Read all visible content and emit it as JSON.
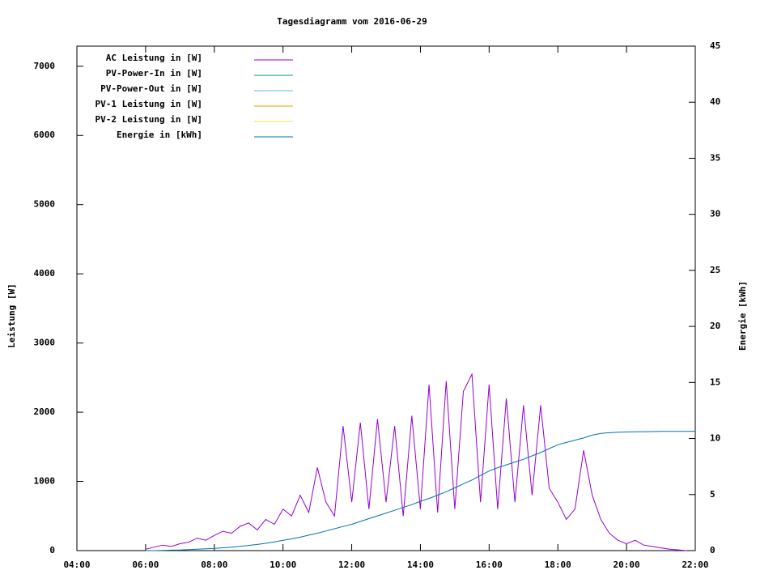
{
  "chart_data": {
    "type": "line",
    "title": "Tagesdiagramm vom 2016-06-29",
    "y_label": "Leistung [W]",
    "y2_label": "Energie [kWh]",
    "legend": "top-left",
    "x": [
      "06:00",
      "06:15",
      "06:30",
      "06:45",
      "07:00",
      "07:15",
      "07:30",
      "07:45",
      "08:00",
      "08:15",
      "08:30",
      "08:45",
      "09:00",
      "09:15",
      "09:30",
      "09:45",
      "10:00",
      "10:15",
      "10:30",
      "10:45",
      "11:00",
      "11:15",
      "11:30",
      "11:45",
      "12:00",
      "12:15",
      "12:30",
      "12:45",
      "13:00",
      "13:15",
      "13:30",
      "13:45",
      "14:00",
      "14:15",
      "14:30",
      "14:45",
      "15:00",
      "15:15",
      "15:30",
      "15:45",
      "16:00",
      "16:15",
      "16:30",
      "16:45",
      "17:00",
      "17:15",
      "17:30",
      "17:45",
      "18:00",
      "18:15",
      "18:30",
      "18:45",
      "19:00",
      "19:15",
      "19:30",
      "19:45",
      "20:00",
      "20:15",
      "20:30",
      "20:45",
      "21:00",
      "21:15",
      "21:30",
      "21:45",
      "22:00"
    ],
    "xlim": [
      "04:00",
      "22:00"
    ],
    "xticks": [
      "04:00",
      "06:00",
      "08:00",
      "10:00",
      "12:00",
      "14:00",
      "16:00",
      "18:00",
      "20:00",
      "22:00"
    ],
    "ylim": [
      0,
      7290
    ],
    "yticks": [
      0,
      1000,
      2000,
      3000,
      4000,
      5000,
      6000,
      7000
    ],
    "y2lim": [
      0,
      45
    ],
    "y2ticks": [
      0,
      5,
      10,
      15,
      20,
      25,
      30,
      35,
      40,
      45
    ],
    "series": [
      {
        "name": "AC Leistung in [W]",
        "color": "#9400d3",
        "values": [
          20,
          50,
          80,
          60,
          100,
          120,
          180,
          150,
          220,
          280,
          250,
          350,
          400,
          300,
          450,
          380,
          600,
          500,
          800,
          550,
          1200,
          700,
          500,
          1800,
          700,
          1850,
          600,
          1900,
          700,
          1800,
          500,
          1950,
          600,
          2400,
          550,
          2450,
          600,
          2300,
          2550,
          700,
          2400,
          600,
          2200,
          700,
          2100,
          800,
          2100,
          900,
          700,
          450,
          600,
          1450,
          800,
          450,
          250,
          150,
          100,
          150,
          80,
          60,
          40,
          20,
          10,
          0,
          null
        ]
      },
      {
        "name": "PV-Power-In in [W]",
        "color": "#009e73",
        "values": [
          null,
          null,
          null,
          null,
          null,
          null,
          null,
          null,
          null,
          null,
          null,
          null,
          null,
          null,
          null,
          null,
          null,
          null,
          null,
          null,
          null,
          null,
          null,
          null,
          null,
          null,
          null,
          null,
          null,
          null,
          null,
          null,
          null,
          null,
          null,
          null,
          null,
          null,
          null,
          null,
          null,
          null,
          null,
          null,
          null,
          null,
          null,
          null,
          null,
          null,
          null,
          null,
          null,
          null,
          null,
          null,
          null,
          null,
          null,
          null,
          null,
          null,
          null,
          null,
          null
        ]
      },
      {
        "name": "PV-Power-Out in [W]",
        "color": "#56b4e9",
        "values": [
          null,
          null,
          null,
          null,
          null,
          null,
          null,
          null,
          null,
          null,
          null,
          null,
          null,
          null,
          null,
          null,
          null,
          null,
          null,
          null,
          null,
          null,
          null,
          null,
          null,
          null,
          null,
          null,
          null,
          null,
          null,
          null,
          null,
          null,
          null,
          null,
          null,
          null,
          null,
          null,
          null,
          null,
          null,
          null,
          null,
          null,
          null,
          null,
          null,
          null,
          null,
          null,
          null,
          null,
          null,
          null,
          null,
          null,
          null,
          null,
          null,
          null,
          null,
          null,
          null
        ]
      },
      {
        "name": "PV-1 Leistung in [W]",
        "color": "#e69f00",
        "values": [
          null,
          null,
          null,
          null,
          null,
          null,
          null,
          null,
          null,
          null,
          null,
          null,
          null,
          null,
          null,
          null,
          null,
          null,
          null,
          null,
          null,
          null,
          null,
          null,
          null,
          null,
          null,
          null,
          null,
          null,
          null,
          null,
          null,
          null,
          null,
          null,
          null,
          null,
          null,
          null,
          null,
          null,
          null,
          null,
          null,
          null,
          null,
          null,
          null,
          null,
          null,
          null,
          null,
          null,
          null,
          null,
          null,
          null,
          null,
          null,
          null,
          null,
          null,
          null,
          null
        ]
      },
      {
        "name": "PV-2 Leistung in [W]",
        "color": "#f0e442",
        "values": [
          null,
          null,
          null,
          null,
          null,
          null,
          null,
          null,
          null,
          null,
          null,
          null,
          null,
          null,
          null,
          null,
          null,
          null,
          null,
          null,
          null,
          null,
          null,
          null,
          null,
          null,
          null,
          null,
          null,
          null,
          null,
          null,
          null,
          null,
          null,
          null,
          null,
          null,
          null,
          null,
          null,
          null,
          null,
          null,
          null,
          null,
          null,
          null,
          null,
          null,
          null,
          null,
          null,
          null,
          null,
          null,
          null,
          null,
          null,
          null,
          null,
          null,
          null,
          null,
          null
        ]
      },
      {
        "name": "Energie in [kWh]",
        "color": "#0072b2",
        "axis": "y2",
        "values": [
          0,
          0,
          0.02,
          0.04,
          0.06,
          0.09,
          0.12,
          0.16,
          0.2,
          0.25,
          0.31,
          0.38,
          0.46,
          0.55,
          0.65,
          0.78,
          0.92,
          1.05,
          1.2,
          1.38,
          1.55,
          1.75,
          1.95,
          2.15,
          2.35,
          2.6,
          2.85,
          3.1,
          3.35,
          3.6,
          3.85,
          4.1,
          4.4,
          4.65,
          4.95,
          5.25,
          5.6,
          5.95,
          6.3,
          6.7,
          7.1,
          7.4,
          7.65,
          7.9,
          8.15,
          8.45,
          8.75,
          9.1,
          9.45,
          9.65,
          9.85,
          10.05,
          10.3,
          10.45,
          10.52,
          10.56,
          10.58,
          10.6,
          10.61,
          10.62,
          10.63,
          10.63,
          10.64,
          10.64,
          10.65
        ]
      }
    ]
  }
}
